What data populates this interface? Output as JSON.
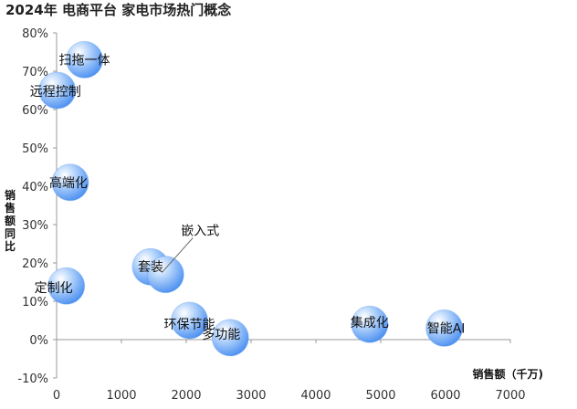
{
  "chart_data": {
    "type": "bubble",
    "title": "2024年 电商平台 家电市场热门概念",
    "xlabel": "销售额（千万)",
    "ylabel": "销售额同比",
    "xlim": [
      0,
      7000
    ],
    "ylim": [
      -10,
      80
    ],
    "x_ticks": [
      "0",
      "1000",
      "2000",
      "3000",
      "4000",
      "5000",
      "6000",
      "7000"
    ],
    "y_ticks": [
      "-10%",
      "0%",
      "10%",
      "20%",
      "30%",
      "40%",
      "50%",
      "60%",
      "70%",
      "80%"
    ],
    "grid": false,
    "bubble_color": "#5B9BF2",
    "points": [
      {
        "label": "扫拖一体",
        "x": 430,
        "y": 73
      },
      {
        "label": "远程控制",
        "x": 10,
        "y": 65
      },
      {
        "label": "高端化",
        "x": 210,
        "y": 41
      },
      {
        "label": "定制化",
        "x": 150,
        "y": 14
      },
      {
        "label": "套装",
        "x": 1450,
        "y": 19
      },
      {
        "label": "嵌入式",
        "x": 1680,
        "y": 17
      },
      {
        "label": "环保节能",
        "x": 2050,
        "y": 5
      },
      {
        "label": "多功能",
        "x": 2680,
        "y": 0.5
      },
      {
        "label": "集成化",
        "x": 4830,
        "y": 4
      },
      {
        "label": "智能AI",
        "x": 5980,
        "y": 3
      }
    ]
  }
}
